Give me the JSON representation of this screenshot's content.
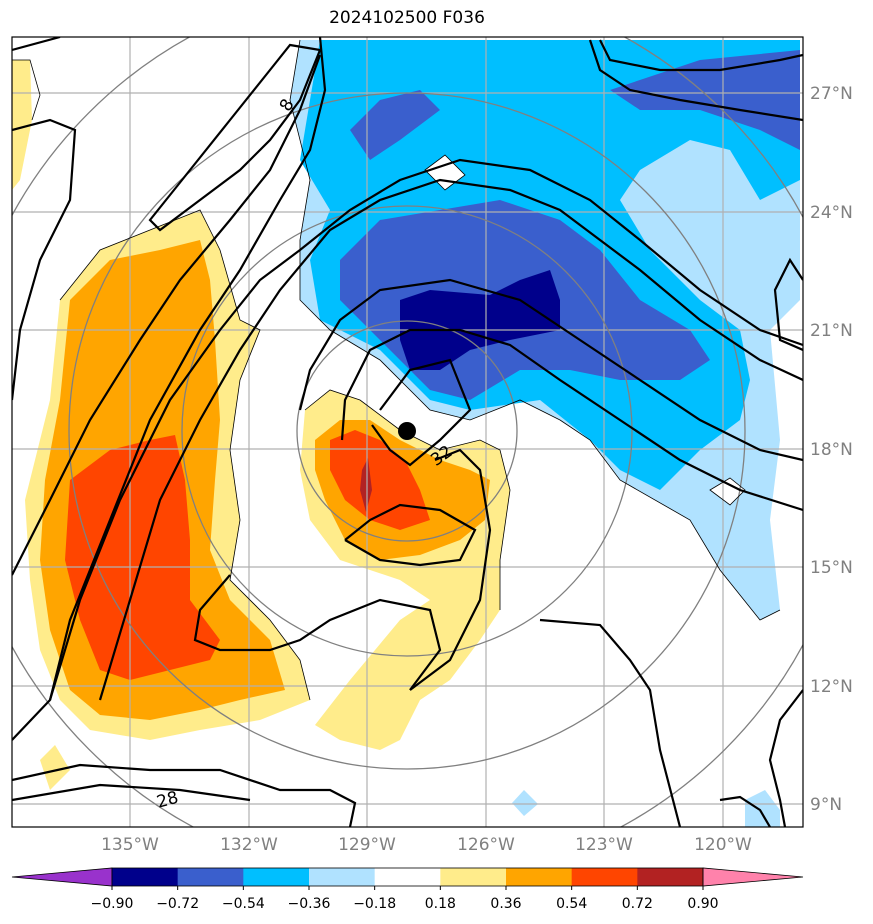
{
  "title": "2024102500 F036",
  "map": {
    "lat_ticks": [
      "27°N",
      "24°N",
      "21°N",
      "18°N",
      "15°N",
      "12°N",
      "9°N"
    ],
    "lon_ticks": [
      "135°W",
      "132°W",
      "129°W",
      "126°W",
      "123°W",
      "120°W"
    ],
    "contour_labels": [
      "8",
      "32",
      "28"
    ],
    "storm_center": {
      "lat": 18.4,
      "lon": -128.0
    }
  },
  "colorbar": {
    "ticks": [
      "−0.90",
      "−0.72",
      "−0.54",
      "−0.36",
      "−0.18",
      "0.18",
      "0.36",
      "0.54",
      "0.72",
      "0.90"
    ],
    "colors": [
      "#9932cc",
      "#00008b",
      "#3a5fcd",
      "#00bfff",
      "#b0e2ff",
      "#ffffff",
      "#ffec8b",
      "#ffa500",
      "#ff4500",
      "#b22222",
      "#ff82ab"
    ]
  }
}
